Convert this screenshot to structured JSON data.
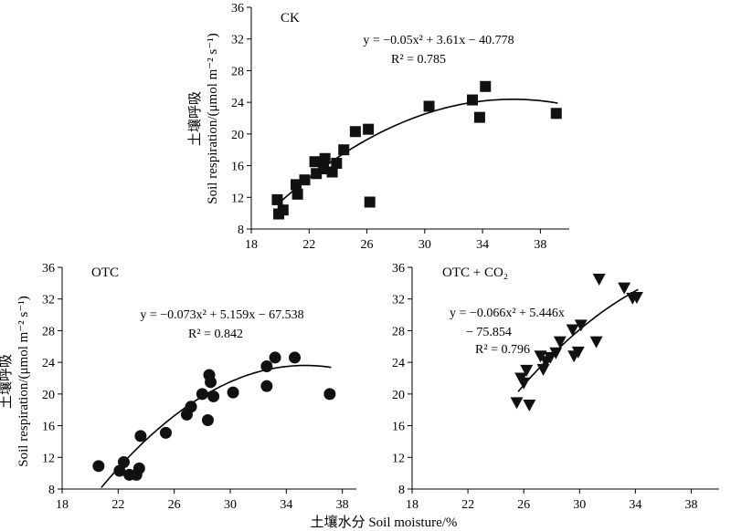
{
  "y_axis_label_cn": "土壤呼吸",
  "y_axis_label_en": "Soil respiration/(μmol m⁻² s⁻¹)",
  "x_axis_label": "土壤水分 Soil moisture/%",
  "colors": {
    "axis": "#000000",
    "marker": "#111111",
    "curve": "#000000"
  },
  "chart_data": [
    {
      "type": "scatter",
      "panel": "CK",
      "marker": "square",
      "xlim": [
        18,
        40
      ],
      "ylim": [
        8,
        36
      ],
      "xticks": [
        18,
        22,
        26,
        30,
        34,
        38
      ],
      "yticks": [
        8,
        12,
        16,
        20,
        24,
        28,
        32,
        36
      ],
      "equation": "y = −0.05x² + 3.61x − 40.778",
      "r2": "R² = 0.785",
      "fit": {
        "a": -0.05,
        "b": 3.61,
        "c": -40.778,
        "x_range": [
          19.8,
          39.2
        ]
      },
      "points": [
        {
          "x": 19.8,
          "y": 11.7
        },
        {
          "x": 19.9,
          "y": 9.9
        },
        {
          "x": 20.2,
          "y": 10.4
        },
        {
          "x": 21.1,
          "y": 13.6
        },
        {
          "x": 21.2,
          "y": 12.4
        },
        {
          "x": 21.7,
          "y": 14.2
        },
        {
          "x": 22.4,
          "y": 16.5
        },
        {
          "x": 22.5,
          "y": 15.0
        },
        {
          "x": 23.0,
          "y": 15.6
        },
        {
          "x": 23.1,
          "y": 16.9
        },
        {
          "x": 23.6,
          "y": 15.2
        },
        {
          "x": 23.9,
          "y": 16.3
        },
        {
          "x": 24.4,
          "y": 18.0
        },
        {
          "x": 25.2,
          "y": 20.3
        },
        {
          "x": 26.1,
          "y": 20.6
        },
        {
          "x": 26.2,
          "y": 11.4
        },
        {
          "x": 30.3,
          "y": 23.5
        },
        {
          "x": 33.3,
          "y": 24.3
        },
        {
          "x": 33.8,
          "y": 22.1
        },
        {
          "x": 34.2,
          "y": 26.0
        },
        {
          "x": 39.1,
          "y": 22.6
        }
      ]
    },
    {
      "type": "scatter",
      "panel": "OTC",
      "marker": "circle",
      "xlim": [
        18,
        39
      ],
      "ylim": [
        8,
        36
      ],
      "xticks": [
        18,
        22,
        26,
        30,
        34,
        38
      ],
      "yticks": [
        8,
        12,
        16,
        20,
        24,
        28,
        32,
        36
      ],
      "equation": "y = −0.073x² + 5.159x − 67.538",
      "r2": "R² = 0.842",
      "fit": {
        "a": -0.073,
        "b": 5.159,
        "c": -67.538,
        "x_range": [
          20.8,
          37.2
        ]
      },
      "points": [
        {
          "x": 20.6,
          "y": 10.9
        },
        {
          "x": 22.1,
          "y": 10.3
        },
        {
          "x": 22.4,
          "y": 11.4
        },
        {
          "x": 22.8,
          "y": 9.8
        },
        {
          "x": 23.3,
          "y": 9.8
        },
        {
          "x": 23.5,
          "y": 10.6
        },
        {
          "x": 23.6,
          "y": 14.7
        },
        {
          "x": 25.4,
          "y": 15.1
        },
        {
          "x": 26.9,
          "y": 17.4
        },
        {
          "x": 27.2,
          "y": 18.4
        },
        {
          "x": 28.0,
          "y": 20.0
        },
        {
          "x": 28.4,
          "y": 16.7
        },
        {
          "x": 28.5,
          "y": 22.4
        },
        {
          "x": 28.6,
          "y": 21.5
        },
        {
          "x": 28.8,
          "y": 19.7
        },
        {
          "x": 30.2,
          "y": 20.2
        },
        {
          "x": 32.6,
          "y": 21.0
        },
        {
          "x": 32.6,
          "y": 23.5
        },
        {
          "x": 33.2,
          "y": 24.6
        },
        {
          "x": 34.6,
          "y": 24.6
        },
        {
          "x": 37.1,
          "y": 20.0
        }
      ]
    },
    {
      "type": "scatter",
      "panel": "OTC + CO₂",
      "marker": "triangle-down",
      "xlim": [
        18,
        40
      ],
      "ylim": [
        8,
        36
      ],
      "xticks": [
        18,
        22,
        26,
        30,
        34,
        38
      ],
      "yticks": [
        8,
        12,
        16,
        20,
        24,
        28,
        32,
        36
      ],
      "equation_line1": "y = −0.066x² + 5.446x",
      "equation_line2": "− 75.854",
      "r2": "R² = 0.796",
      "fit": {
        "a": -0.066,
        "b": 5.446,
        "c": -75.854,
        "x_range": [
          25.6,
          34.2
        ]
      },
      "points": [
        {
          "x": 25.5,
          "y": 18.9
        },
        {
          "x": 25.8,
          "y": 22.0
        },
        {
          "x": 26.0,
          "y": 21.4
        },
        {
          "x": 26.2,
          "y": 23.0
        },
        {
          "x": 26.4,
          "y": 18.6
        },
        {
          "x": 27.2,
          "y": 24.8
        },
        {
          "x": 27.4,
          "y": 23.1
        },
        {
          "x": 27.6,
          "y": 24.1
        },
        {
          "x": 27.9,
          "y": 24.6
        },
        {
          "x": 28.3,
          "y": 25.2
        },
        {
          "x": 28.6,
          "y": 26.6
        },
        {
          "x": 29.5,
          "y": 28.1
        },
        {
          "x": 29.6,
          "y": 24.8
        },
        {
          "x": 29.9,
          "y": 25.3
        },
        {
          "x": 30.1,
          "y": 28.7
        },
        {
          "x": 31.2,
          "y": 26.6
        },
        {
          "x": 31.4,
          "y": 34.5
        },
        {
          "x": 33.2,
          "y": 33.4
        },
        {
          "x": 33.8,
          "y": 32.1
        },
        {
          "x": 34.1,
          "y": 32.2
        }
      ]
    }
  ]
}
